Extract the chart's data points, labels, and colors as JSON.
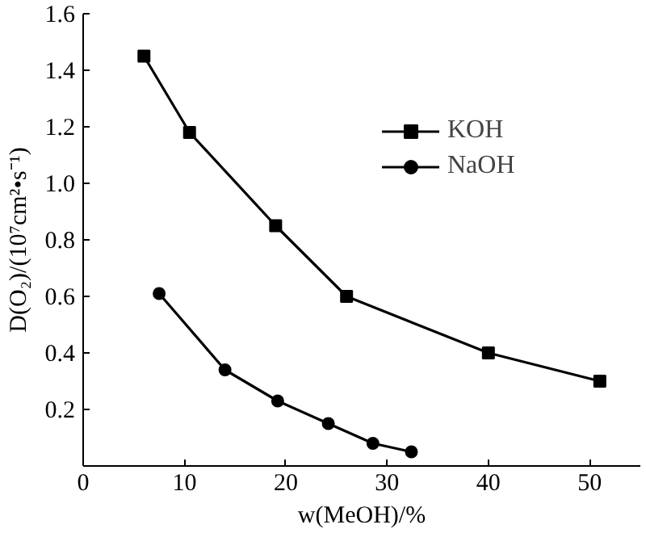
{
  "chart_data": {
    "type": "line",
    "xlabel": "w(MeOH)/%",
    "ylabel": "D(O₂)/(10⁷cm²•s⁻¹)",
    "xlim": [
      0,
      55
    ],
    "xticks": [
      0,
      10,
      20,
      30,
      40,
      50
    ],
    "ylim": [
      0,
      1.6
    ],
    "yticks": [
      0.2,
      0.4,
      0.6,
      0.8,
      {
        "value": 1.0,
        "label": "1.0"
      },
      1.2,
      1.4,
      1.6
    ],
    "grid": false,
    "legend": "top right",
    "series": [
      {
        "name": "KOH",
        "color": "#000000",
        "marker": "square",
        "x": [
          6,
          10.5,
          19,
          26,
          40,
          51
        ],
        "values": [
          1.45,
          1.18,
          0.85,
          0.6,
          0.4,
          0.3
        ]
      },
      {
        "name": "NaOH",
        "color": "#000000",
        "marker": "circle",
        "x": [
          7.5,
          14,
          19.2,
          24.2,
          28.6,
          32.4
        ],
        "values": [
          0.61,
          0.34,
          0.23,
          0.15,
          0.08,
          0.05
        ]
      }
    ]
  }
}
